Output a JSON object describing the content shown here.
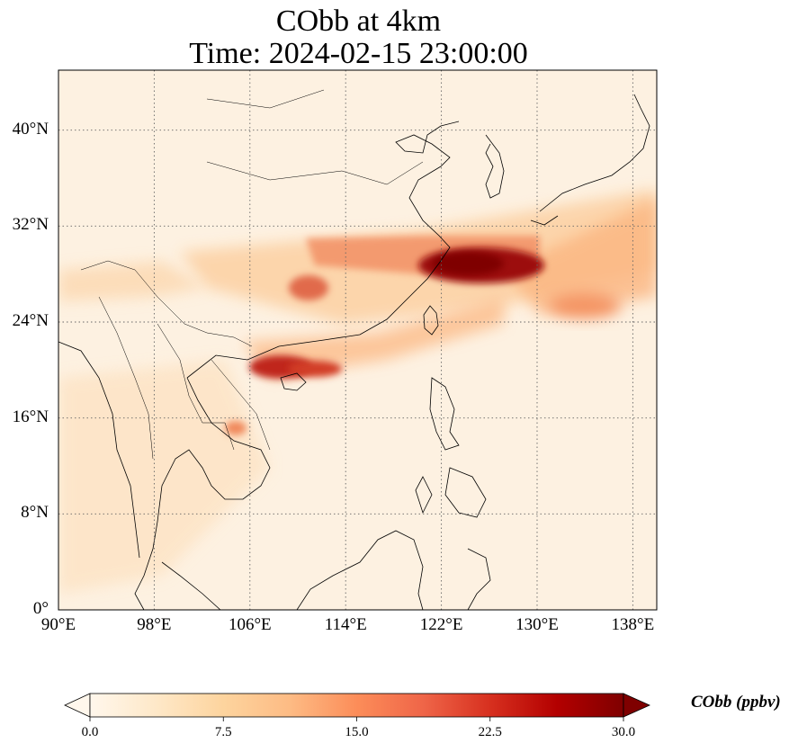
{
  "title_line1": "CObb at 4km",
  "title_line2": "Time: 2024-02-15 23:00:00",
  "map": {
    "extent": {
      "lon_min": 90,
      "lon_max": 140,
      "lat_min": 0,
      "lat_max": 45
    },
    "lat_ticks": [
      {
        "value": 0,
        "label": "0°"
      },
      {
        "value": 8,
        "label": "8°N"
      },
      {
        "value": 16,
        "label": "16°N"
      },
      {
        "value": 24,
        "label": "24°N"
      },
      {
        "value": 32,
        "label": "32°N"
      },
      {
        "value": 40,
        "label": "40°N"
      }
    ],
    "lon_ticks": [
      {
        "value": 90,
        "label": "90°E"
      },
      {
        "value": 98,
        "label": "98°E"
      },
      {
        "value": 106,
        "label": "106°E"
      },
      {
        "value": 114,
        "label": "114°E"
      },
      {
        "value": 122,
        "label": "122°E"
      },
      {
        "value": 130,
        "label": "130°E"
      },
      {
        "value": 138,
        "label": "138°E"
      }
    ],
    "gridlines": "dotted",
    "colormap": "OrRd",
    "background_color": "#fdf1e1"
  },
  "colorbar": {
    "label": "CObb (ppbv)",
    "min": 0.0,
    "max": 30.0,
    "ticks": [
      "0.0",
      "7.5",
      "15.0",
      "22.5",
      "30.0"
    ],
    "extend": "both",
    "colors": [
      "#fff7ec",
      "#fee8c8",
      "#fdd49e",
      "#fdbb84",
      "#fc8d59",
      "#ef6548",
      "#d7301f",
      "#b30000",
      "#7f0000"
    ]
  }
}
